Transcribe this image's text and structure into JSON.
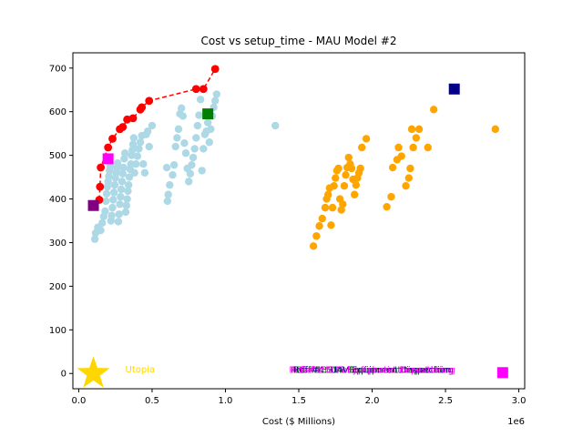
{
  "chart_data": {
    "type": "scatter",
    "title": "Cost vs setup_time - MAU Model #2",
    "xlabel": "Cost ($ Millions)",
    "ylabel": "",
    "x_offset_text": "1e6",
    "xlim": [
      -40000,
      3040000
    ],
    "ylim": [
      -35,
      735
    ],
    "x_ticks": [
      0,
      500000,
      1000000,
      1500000,
      2000000,
      2500000,
      3000000
    ],
    "x_tick_labels": [
      "0.0",
      "0.5",
      "1.0",
      "1.5",
      "2.0",
      "2.5",
      "3.0"
    ],
    "y_ticks": [
      0,
      100,
      200,
      300,
      400,
      500,
      600,
      700
    ],
    "y_tick_labels": [
      "0",
      "100",
      "200",
      "300",
      "400",
      "500",
      "600",
      "700"
    ],
    "colors": {
      "lightblue": "#add8e6",
      "orange": "#ffa500",
      "red": "#ff0000",
      "purple": "#800080",
      "magenta": "#ff00ff",
      "green": "#008000",
      "navy": "#00008b",
      "gold": "#ffd700"
    },
    "series": [
      {
        "color": "lightblue",
        "marker": "circle",
        "points": [
          [
            110000,
            308
          ],
          [
            115000,
            322
          ],
          [
            130000,
            335
          ],
          [
            150000,
            328
          ],
          [
            160000,
            345
          ],
          [
            170000,
            360
          ],
          [
            180000,
            372
          ],
          [
            185000,
            395
          ],
          [
            190000,
            412
          ],
          [
            195000,
            428
          ],
          [
            200000,
            440
          ],
          [
            205000,
            452
          ],
          [
            210000,
            465
          ],
          [
            215000,
            475
          ],
          [
            220000,
            350
          ],
          [
            225000,
            362
          ],
          [
            230000,
            380
          ],
          [
            235000,
            398
          ],
          [
            240000,
            415
          ],
          [
            245000,
            432
          ],
          [
            250000,
            448
          ],
          [
            255000,
            460
          ],
          [
            260000,
            470
          ],
          [
            265000,
            482
          ],
          [
            270000,
            348
          ],
          [
            275000,
            365
          ],
          [
            280000,
            388
          ],
          [
            285000,
            405
          ],
          [
            290000,
            422
          ],
          [
            295000,
            440
          ],
          [
            300000,
            458
          ],
          [
            305000,
            472
          ],
          [
            310000,
            492
          ],
          [
            315000,
            505
          ],
          [
            320000,
            370
          ],
          [
            325000,
            385
          ],
          [
            330000,
            400
          ],
          [
            335000,
            418
          ],
          [
            340000,
            432
          ],
          [
            345000,
            450
          ],
          [
            350000,
            468
          ],
          [
            355000,
            480
          ],
          [
            360000,
            500
          ],
          [
            365000,
            512
          ],
          [
            370000,
            525
          ],
          [
            375000,
            540
          ],
          [
            380000,
            460
          ],
          [
            390000,
            480
          ],
          [
            400000,
            498
          ],
          [
            410000,
            515
          ],
          [
            420000,
            530
          ],
          [
            430000,
            545
          ],
          [
            440000,
            480
          ],
          [
            450000,
            460
          ],
          [
            460000,
            548
          ],
          [
            470000,
            555
          ],
          [
            480000,
            520
          ],
          [
            500000,
            568
          ],
          [
            600000,
            472
          ],
          [
            605000,
            395
          ],
          [
            610000,
            410
          ],
          [
            620000,
            432
          ],
          [
            640000,
            455
          ],
          [
            650000,
            478
          ],
          [
            660000,
            520
          ],
          [
            670000,
            540
          ],
          [
            680000,
            560
          ],
          [
            690000,
            595
          ],
          [
            700000,
            608
          ],
          [
            710000,
            590
          ],
          [
            720000,
            528
          ],
          [
            730000,
            505
          ],
          [
            740000,
            470
          ],
          [
            750000,
            440
          ],
          [
            760000,
            458
          ],
          [
            770000,
            478
          ],
          [
            780000,
            495
          ],
          [
            790000,
            515
          ],
          [
            800000,
            540
          ],
          [
            810000,
            568
          ],
          [
            820000,
            592
          ],
          [
            830000,
            628
          ],
          [
            840000,
            465
          ],
          [
            850000,
            515
          ],
          [
            860000,
            548
          ],
          [
            870000,
            555
          ],
          [
            880000,
            575
          ],
          [
            890000,
            530
          ],
          [
            900000,
            560
          ],
          [
            910000,
            590
          ],
          [
            920000,
            610
          ],
          [
            930000,
            625
          ],
          [
            940000,
            640
          ],
          [
            1340000,
            568
          ]
        ]
      },
      {
        "color": "orange",
        "marker": "circle",
        "points": [
          [
            1600000,
            292
          ],
          [
            1620000,
            315
          ],
          [
            1640000,
            338
          ],
          [
            1660000,
            355
          ],
          [
            1680000,
            380
          ],
          [
            1690000,
            400
          ],
          [
            1700000,
            410
          ],
          [
            1710000,
            425
          ],
          [
            1720000,
            340
          ],
          [
            1730000,
            380
          ],
          [
            1740000,
            430
          ],
          [
            1750000,
            448
          ],
          [
            1760000,
            465
          ],
          [
            1770000,
            470
          ],
          [
            1780000,
            400
          ],
          [
            1790000,
            375
          ],
          [
            1800000,
            388
          ],
          [
            1810000,
            430
          ],
          [
            1820000,
            455
          ],
          [
            1830000,
            472
          ],
          [
            1840000,
            495
          ],
          [
            1850000,
            480
          ],
          [
            1860000,
            470
          ],
          [
            1870000,
            445
          ],
          [
            1880000,
            410
          ],
          [
            1890000,
            432
          ],
          [
            1900000,
            448
          ],
          [
            1910000,
            460
          ],
          [
            1920000,
            470
          ],
          [
            1930000,
            518
          ],
          [
            1960000,
            538
          ],
          [
            2100000,
            382
          ],
          [
            2130000,
            405
          ],
          [
            2140000,
            472
          ],
          [
            2170000,
            490
          ],
          [
            2180000,
            518
          ],
          [
            2200000,
            498
          ],
          [
            2230000,
            430
          ],
          [
            2250000,
            448
          ],
          [
            2260000,
            470
          ],
          [
            2270000,
            560
          ],
          [
            2280000,
            518
          ],
          [
            2300000,
            540
          ],
          [
            2320000,
            560
          ],
          [
            2380000,
            518
          ],
          [
            2420000,
            605
          ],
          [
            2840000,
            560
          ]
        ]
      }
    ],
    "pareto_front": {
      "color": "red",
      "points": [
        [
          140000,
          398
        ],
        [
          145000,
          428
        ],
        [
          150000,
          472
        ],
        [
          200000,
          518
        ],
        [
          230000,
          538
        ],
        [
          280000,
          560
        ],
        [
          300000,
          565
        ],
        [
          330000,
          582
        ],
        [
          370000,
          585
        ],
        [
          420000,
          605
        ],
        [
          430000,
          610
        ],
        [
          480000,
          625
        ],
        [
          800000,
          652
        ],
        [
          850000,
          652
        ],
        [
          930000,
          698
        ]
      ]
    },
    "highlights": [
      {
        "color": "purple",
        "marker": "square",
        "x": 100000,
        "y": 385
      },
      {
        "color": "magenta",
        "marker": "square",
        "x": 200000,
        "y": 492
      },
      {
        "color": "green",
        "marker": "square",
        "x": 880000,
        "y": 595
      },
      {
        "color": "navy",
        "marker": "square",
        "x": 2560000,
        "y": 652
      },
      {
        "color": "magenta",
        "marker": "square",
        "x": 2890000,
        "y": 2
      }
    ],
    "utopia": {
      "color": "gold",
      "marker": "star",
      "x": 100000,
      "y": 0,
      "label": "Utopia"
    },
    "overlapping_labels": {
      "x": 2000000,
      "y": 8,
      "items": [
        {
          "text": "Ref #1: SPF Equipment Dispatching",
          "color": "purple"
        },
        {
          "text": "Ref #2: MTR Equipment Dispatching",
          "color": "magenta"
        },
        {
          "text": "Ref #3: VR Equipment Inspection",
          "color": "green"
        },
        {
          "text": "Ref #4: UAV Equipment Inspection",
          "color": "navy"
        },
        {
          "text": "Ref #5: Fully Robotic Inspection",
          "color": "magenta"
        }
      ]
    }
  }
}
